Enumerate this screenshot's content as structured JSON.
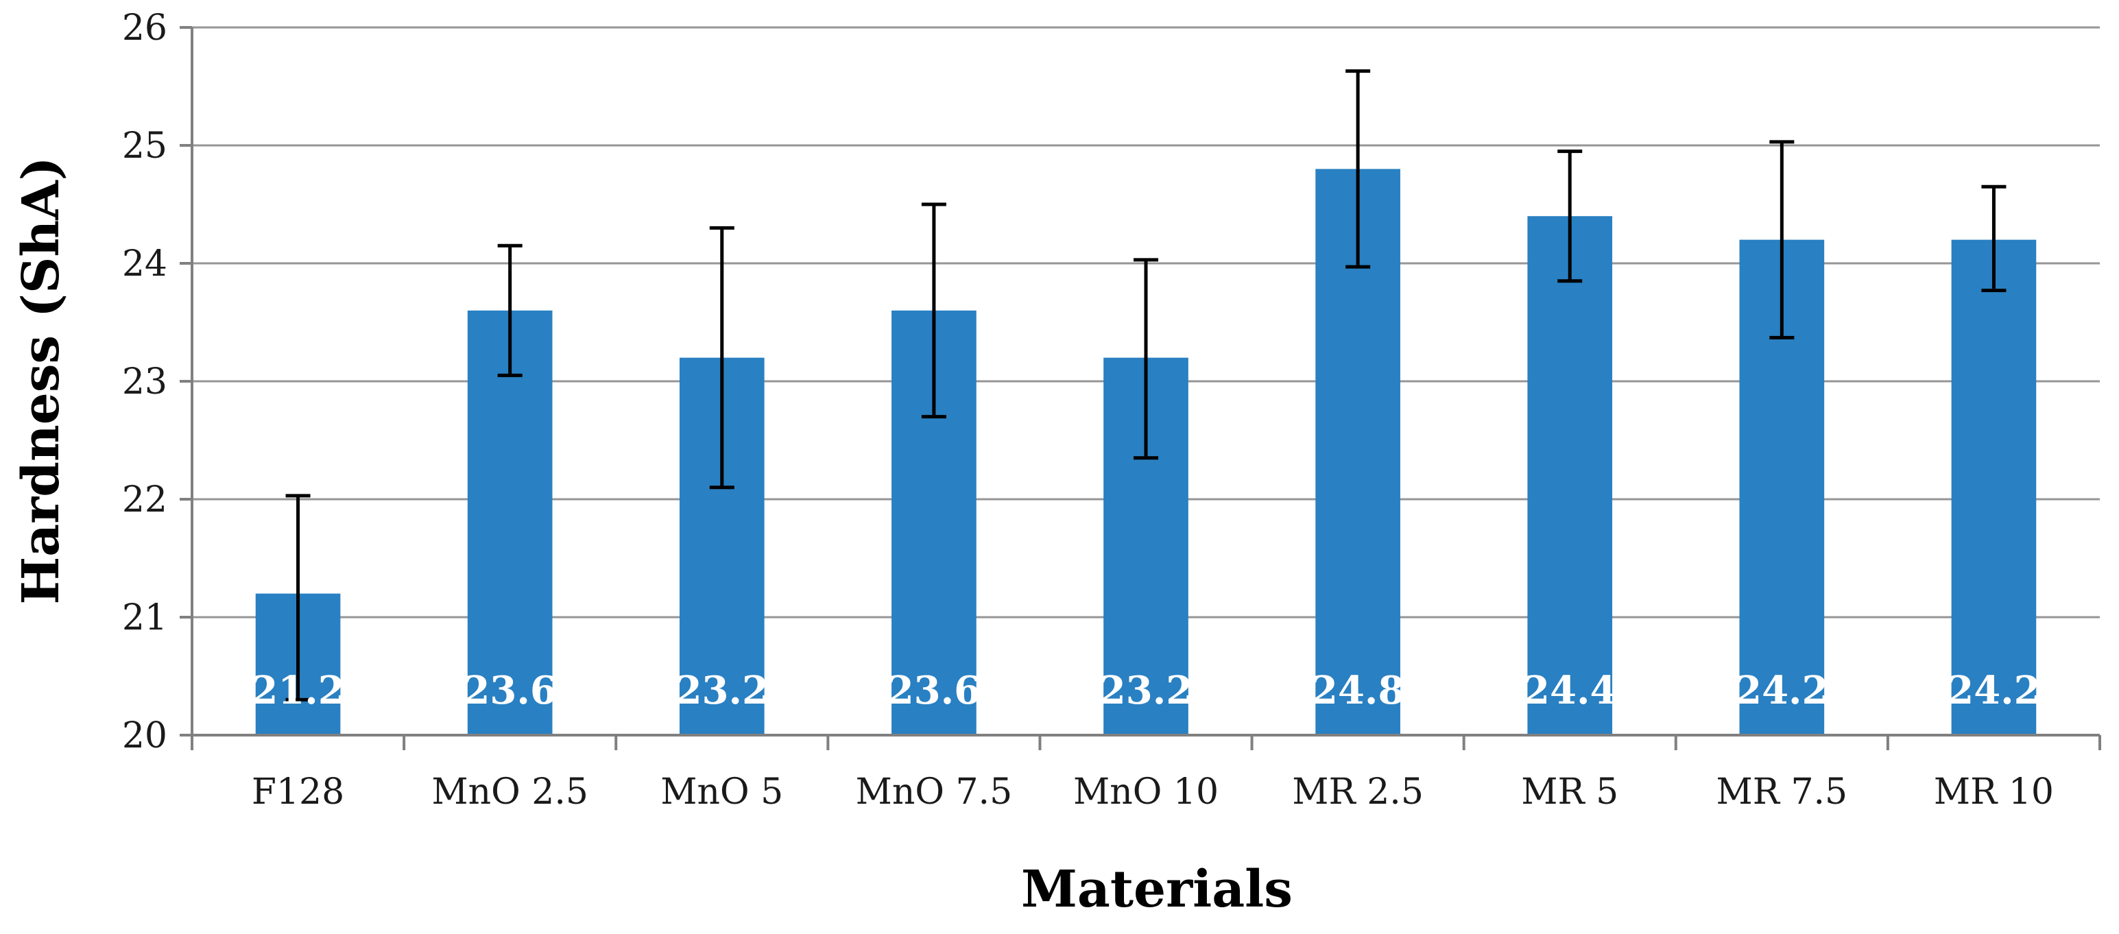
{
  "chart_data": {
    "type": "bar",
    "title": "",
    "xlabel": "Materials",
    "ylabel": "Hardness (ShA)",
    "ylim": [
      20,
      26
    ],
    "ytick_step": 1,
    "grid": true,
    "categories": [
      "F128",
      "MnO 2.5",
      "MnO 5",
      "MnO 7.5",
      "MnO 10",
      "MR 2.5",
      "MR 5",
      "MR 7.5",
      "MR 10"
    ],
    "values": [
      21.2,
      23.6,
      23.2,
      23.6,
      23.2,
      24.8,
      24.4,
      24.2,
      24.2
    ],
    "data_labels": [
      "21.2",
      "23.6",
      "23.2",
      "23.6",
      "23.2",
      "24.8",
      "24.4",
      "24.2",
      "24.2"
    ],
    "error_low": [
      20.3,
      23.05,
      22.1,
      22.7,
      22.35,
      23.97,
      23.85,
      23.37,
      23.77
    ],
    "error_high": [
      22.03,
      24.15,
      24.3,
      24.5,
      24.03,
      25.63,
      24.95,
      25.03,
      24.65
    ],
    "colors": {
      "bar": "#2980c2",
      "grid": "#969696",
      "axis": "#808080",
      "error": "#000000"
    }
  }
}
